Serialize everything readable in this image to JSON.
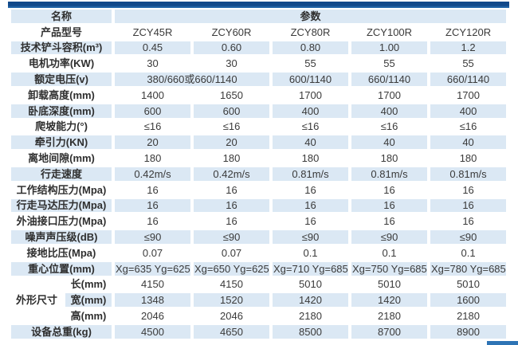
{
  "colors": {
    "top_bar": "#11498a",
    "top_bar_edge": "#2f74b5",
    "row_alt": "#dbe8f4",
    "bottom_bar": "#2e74b5",
    "text": "#333333"
  },
  "table": {
    "header": {
      "name": "名称",
      "params": "参数"
    },
    "rows": [
      {
        "label": "产品型号",
        "cells": [
          "ZCY45R",
          "ZCY60R",
          "ZCY80R",
          "ZCY100R",
          "ZCY120R"
        ]
      },
      {
        "label": "技术铲斗容积(m³)",
        "cells": [
          "0.45",
          "0.60",
          "0.80",
          "1.00",
          "1.2"
        ]
      },
      {
        "label": "电机功率(KW)",
        "cells": [
          "30",
          "30",
          "55",
          "55",
          "55"
        ]
      },
      {
        "label": "额定电压(v)",
        "cells": [
          {
            "text": "380/660或660/1140",
            "span": 2
          },
          "600/1140",
          "660/1140",
          "660/1140"
        ]
      },
      {
        "label": "卸载高度(mm)",
        "cells": [
          "1400",
          "1650",
          "1700",
          "1700",
          "1700"
        ]
      },
      {
        "label": "卧底深度(mm)",
        "cells": [
          "600",
          "600",
          "400",
          "400",
          "400"
        ]
      },
      {
        "label": "爬坡能力(°)",
        "cells": [
          "≤16",
          "≤16",
          "≤16",
          "≤16",
          "≤16"
        ]
      },
      {
        "label": "牵引力(KN)",
        "cells": [
          "20",
          "20",
          "40",
          "40",
          "40"
        ]
      },
      {
        "label": "离地间隙(mm)",
        "cells": [
          "180",
          "180",
          "180",
          "180",
          "180"
        ]
      },
      {
        "label": "行走速度",
        "cells": [
          "0.42m/s",
          "0.42m/s",
          "0.81m/s",
          "0.81m/s",
          "0.81m/s"
        ]
      },
      {
        "label": "工作结构压力(Mpa)",
        "cells": [
          "16",
          "16",
          "16",
          "16",
          "16"
        ]
      },
      {
        "label": "行走马达压力(Mpa)",
        "cells": [
          "16",
          "16",
          "16",
          "16",
          "16"
        ]
      },
      {
        "label": "外油接口压力(Mpa)",
        "cells": [
          "16",
          "16",
          "16",
          "16",
          "16"
        ]
      },
      {
        "label": "噪声声压级(dB)",
        "cells": [
          "≤90",
          "≤90",
          "≤90",
          "≤90",
          "≤90"
        ]
      },
      {
        "label": "接地比压(Mpa)",
        "cells": [
          "0.07",
          "0.07",
          "0.1",
          "0.1",
          "0.1"
        ]
      },
      {
        "label": "重心位置(mm)",
        "cells": [
          "Xg=635 Yg=625",
          "Xg=650 Yg=625",
          "Xg=710 Yg=685",
          "Xg=750 Yg=685",
          "Xg=780 Yg=685"
        ]
      },
      {
        "group": "外形尺寸",
        "sublabel": "长(mm)",
        "cells": [
          "4150",
          "4150",
          "5010",
          "5010",
          "5010"
        ]
      },
      {
        "sublabel": "宽(mm)",
        "cells": [
          "1348",
          "1520",
          "1420",
          "1420",
          "1600"
        ]
      },
      {
        "sublabel": "高(mm)",
        "cells": [
          "2046",
          "2046",
          "2180",
          "2180",
          "2180"
        ]
      },
      {
        "label": "设备总重(kg)",
        "cells": [
          "4500",
          "4650",
          "8500",
          "8700",
          "8900"
        ]
      }
    ]
  }
}
